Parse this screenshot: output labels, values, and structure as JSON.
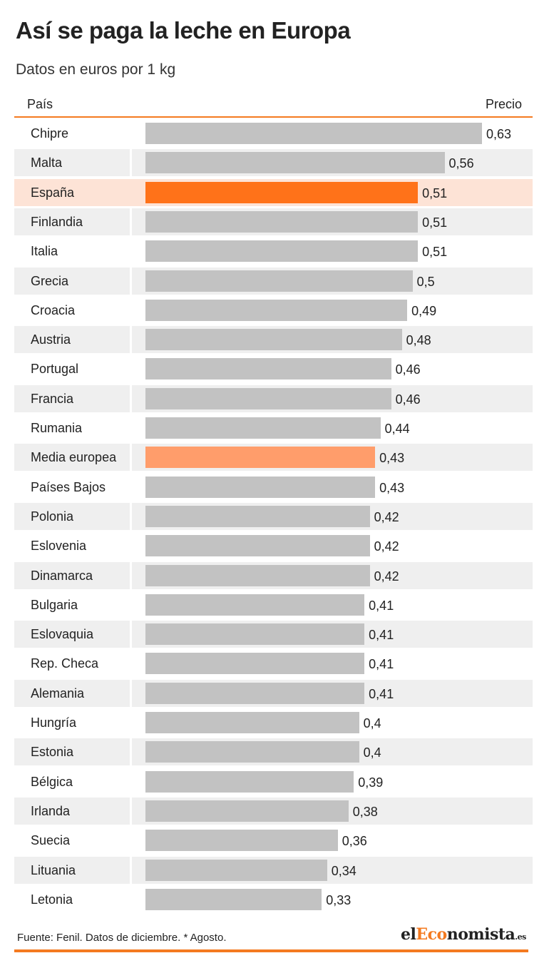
{
  "title": "Así se paga la leche en Europa",
  "subtitle": "Datos en euros por 1 kg",
  "columns": {
    "left": "País",
    "right": "Precio"
  },
  "colors": {
    "bar": "#c2c2c2",
    "highlight_bar": "#ff7219",
    "highlight_row": "#fde3d6",
    "average_bar": "#ff9d6b",
    "stripe": "#efefef",
    "accent": "#f47a20"
  },
  "chart_data": {
    "type": "bar",
    "orientation": "horizontal",
    "xlim": [
      0,
      0.63
    ],
    "categories": [
      "Chipre",
      "Malta",
      "España",
      "Finlandia",
      "Italia",
      "Grecia",
      "Croacia",
      "Austria",
      "Portugal",
      "Francia",
      "Rumania",
      "Media europea",
      "Países Bajos",
      "Polonia",
      "Eslovenia",
      "Dinamarca",
      "Bulgaria",
      "Eslovaquia",
      "Rep. Checa",
      "Alemania",
      "Hungría",
      "Estonia",
      "Bélgica",
      "Irlanda",
      "Suecia",
      "Lituania",
      "Letonia"
    ],
    "values": [
      0.63,
      0.56,
      0.51,
      0.51,
      0.51,
      0.5,
      0.49,
      0.48,
      0.46,
      0.46,
      0.44,
      0.43,
      0.43,
      0.42,
      0.42,
      0.42,
      0.41,
      0.41,
      0.41,
      0.41,
      0.4,
      0.4,
      0.39,
      0.38,
      0.36,
      0.34,
      0.33
    ],
    "value_labels": [
      "0,63",
      "0,56",
      "0,51",
      "0,51",
      "0,51",
      "0,5",
      "0,49",
      "0,48",
      "0,46",
      "0,46",
      "0,44",
      "0,43",
      "0,43",
      "0,42",
      "0,42",
      "0,42",
      "0,41",
      "0,41",
      "0,41",
      "0,41",
      "0,4",
      "0,4",
      "0,39",
      "0,38",
      "0,36",
      "0,34",
      "0,33"
    ],
    "highlight": "España",
    "average": "Media europea"
  },
  "footer": {
    "source": "Fuente: Fenil. Datos de diciembre. * Agosto.",
    "logo_prefix": "el",
    "logo_accent": "Eco",
    "logo_rest": "nomista",
    "logo_suffix": ".es"
  }
}
